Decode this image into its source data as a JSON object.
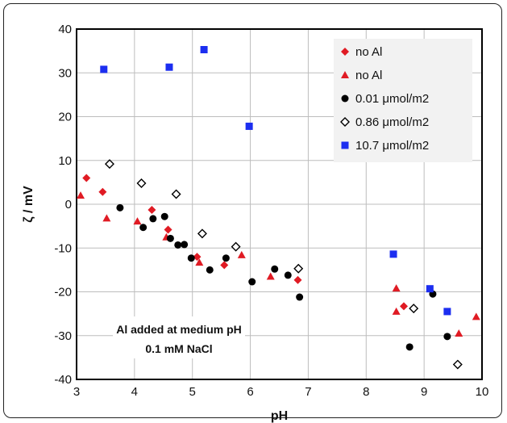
{
  "chart_data": {
    "type": "scatter",
    "xlabel": "pH",
    "ylabel": "ζ / mV",
    "xlim": [
      3,
      10
    ],
    "ylim": [
      -40,
      40
    ],
    "xticks": [
      3,
      4,
      5,
      6,
      7,
      8,
      9,
      10
    ],
    "yticks": [
      -40,
      -30,
      -20,
      -10,
      0,
      10,
      20,
      30,
      40
    ],
    "grid": true,
    "legend_position": "top-right",
    "annotation_lines": [
      "Al added at medium pH",
      "0.1 mM NaCl"
    ],
    "series": [
      {
        "name": "no Al",
        "marker": "diamond",
        "color": "#e01b24",
        "points": [
          [
            3.17,
            6
          ],
          [
            3.45,
            2.8
          ],
          [
            4.3,
            -1.3
          ],
          [
            4.58,
            -5.8
          ],
          [
            5.08,
            -12
          ],
          [
            5.55,
            -13.9
          ],
          [
            6.82,
            -17.3
          ],
          [
            8.65,
            -23.3
          ]
        ]
      },
      {
        "name": "no Al",
        "marker": "triangle",
        "color": "#e01b24",
        "points": [
          [
            3.07,
            2
          ],
          [
            3.52,
            -3.2
          ],
          [
            4.05,
            -3.9
          ],
          [
            4.55,
            -7.5
          ],
          [
            5.12,
            -13.3
          ],
          [
            5.85,
            -11.6
          ],
          [
            6.35,
            -16.5
          ],
          [
            8.52,
            -19.2
          ],
          [
            8.52,
            -24.5
          ],
          [
            9.6,
            -29.5
          ],
          [
            9.9,
            -25.7
          ]
        ]
      },
      {
        "name": "0.01 μmol/m2",
        "marker": "circle",
        "color": "#000000",
        "points": [
          [
            3.75,
            -0.8
          ],
          [
            4.15,
            -5.3
          ],
          [
            4.32,
            -3.3
          ],
          [
            4.52,
            -2.8
          ],
          [
            4.62,
            -7.8
          ],
          [
            4.75,
            -9.3
          ],
          [
            4.86,
            -9.2
          ],
          [
            4.98,
            -12.3
          ],
          [
            5.3,
            -15
          ],
          [
            5.58,
            -12.3
          ],
          [
            6.03,
            -17.7
          ],
          [
            6.42,
            -14.8
          ],
          [
            6.65,
            -16.2
          ],
          [
            6.85,
            -21.2
          ],
          [
            8.75,
            -32.6
          ],
          [
            9.15,
            -20.5
          ],
          [
            9.4,
            -30.2
          ]
        ]
      },
      {
        "name": "0.86 μmol/m2",
        "marker": "open-diamond",
        "color": "#000000",
        "points": [
          [
            3.57,
            9.2
          ],
          [
            4.12,
            4.8
          ],
          [
            4.72,
            2.3
          ],
          [
            5.17,
            -6.7
          ],
          [
            5.75,
            -9.7
          ],
          [
            6.83,
            -14.7
          ],
          [
            8.82,
            -23.8
          ],
          [
            9.58,
            -36.6
          ]
        ]
      },
      {
        "name": "10.7 μmol/m2",
        "marker": "square",
        "color": "#1c2ef0",
        "points": [
          [
            3.47,
            30.8
          ],
          [
            4.6,
            31.3
          ],
          [
            5.2,
            35.3
          ],
          [
            5.98,
            17.8
          ],
          [
            8.47,
            -11.4
          ],
          [
            9.1,
            -19.3
          ],
          [
            9.4,
            -24.5
          ]
        ]
      }
    ]
  }
}
